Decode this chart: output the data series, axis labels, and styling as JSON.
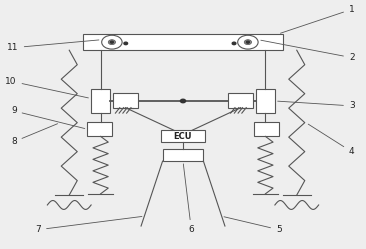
{
  "bg_color": "#eeeeee",
  "line_color": "#555555",
  "box_fill": "#ffffff",
  "label_fs": 6.5,
  "label_color": "#222222",
  "lw": 0.8
}
